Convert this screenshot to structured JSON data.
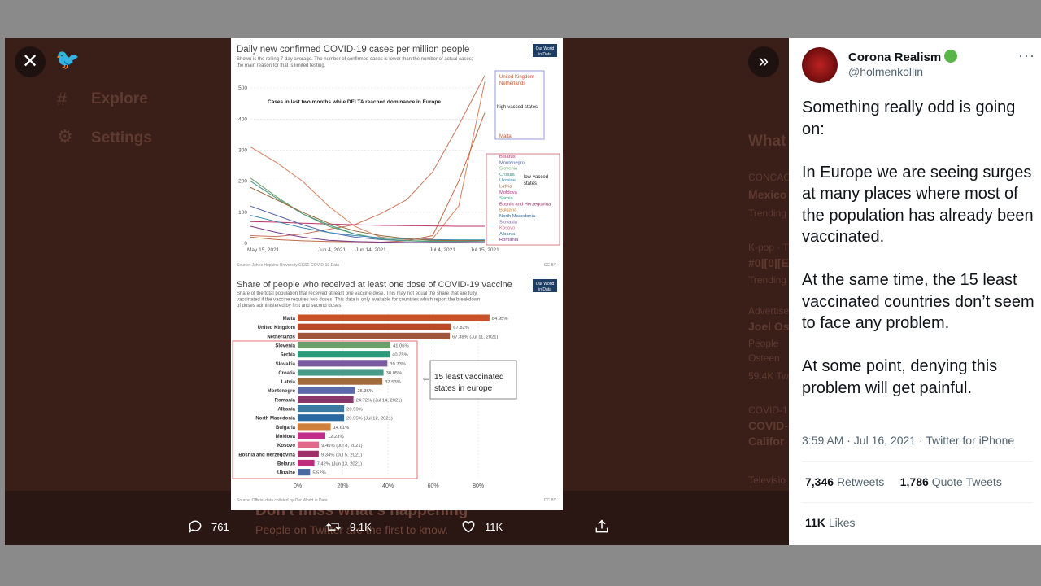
{
  "nav": {
    "explore": "Explore",
    "settings": "Settings"
  },
  "background": {
    "whats": "What",
    "trend_loc_1": "CONCAC",
    "trend_title_1": "Mexico",
    "trending_1": "Trending",
    "trend_loc_2": "K-pop · T",
    "trend_title_2": "#0|[0|[E",
    "trending_2": "Trending",
    "trend_loc_3": "Advertised",
    "trend_title_3": "Joel Os",
    "trend_desc_3a": "People",
    "trend_desc_3b": "Osteen",
    "trend_count_3": "59.4K Tw",
    "trend_loc_4": "COVID-1",
    "trend_title_4a": "COVID-",
    "trend_title_4b": "Califor",
    "footer": "Televisio",
    "headline": "Don't miss what's happening",
    "subline": "People on Twitter are the first to know."
  },
  "post": {
    "author_name": "Corona Realism",
    "author_handle": "@holmenkollin",
    "text": [
      "Something really odd is going on:",
      "In Europe we are seeing surges at many places where most of the population has already been vaccinated.",
      "At the same time, the 15 least vaccinated countries don’t seem to face any problem.",
      "At some point, denying this problem will get painful."
    ],
    "timestamp": "3:59 AM · Jul 16, 2021 · Twitter for iPhone",
    "retweets_count": "7,346",
    "retweets_label": "Retweets",
    "quotes_count": "1,786",
    "quotes_label": "Quote Tweets",
    "likes_count": "11K",
    "likes_label": "Likes"
  },
  "actions": {
    "replies": "761",
    "retweets": "9.1K",
    "likes": "11K"
  },
  "chart_data": [
    {
      "type": "line",
      "title": "Daily new confirmed COVID-19 cases per million people",
      "subtitle": "Shown is the rolling 7-day average. The number of confirmed cases is lower than the number of actual cases; the main reason for that is limited testing.",
      "logo": "Our World in Data",
      "annotation": "Cases in last two months while DELTA reached dominance in Europe",
      "x_ticks": [
        "May 15, 2021",
        "Jun 4, 2021",
        "Jun 14, 2021",
        "Jul 4, 2021",
        "Jul 15, 2021"
      ],
      "y_ticks": [
        "0",
        "100",
        "200",
        "300",
        "400",
        "500"
      ],
      "ylim": [
        0,
        550
      ],
      "high_group_label": "high-vacced states",
      "high_group": [
        "United Kingdom",
        "Netherlands",
        "Malta"
      ],
      "low_group_label": "low-vacced states",
      "low_group": [
        "Belarus",
        "Montenegro",
        "Slovenia",
        "Croatia",
        "Ukraine",
        "Latvia",
        "Moldova",
        "Serbia",
        "Bosnia and Herzegovina",
        "Bulgaria",
        "North Macedonia",
        "Slovakia",
        "Kosovo",
        "Albania",
        "Romania"
      ],
      "source": "Source: Johns Hopkins University CSSE COVID-19 Data",
      "license": "CC BY",
      "series": [
        {
          "name": "United Kingdom",
          "color": "#c8745a",
          "values": [
            25,
            22,
            30,
            45,
            60,
            95,
            140,
            230,
            380,
            540
          ]
        },
        {
          "name": "Netherlands",
          "color": "#d9805f",
          "values": [
            310,
            260,
            200,
            120,
            55,
            20,
            12,
            15,
            120,
            520
          ]
        },
        {
          "name": "Malta",
          "color": "#c06a4a",
          "values": [
            20,
            12,
            8,
            6,
            5,
            4,
            8,
            25,
            200,
            420
          ]
        },
        {
          "name": "Belarus",
          "color": "#c0306a",
          "values": [
            70,
            68,
            65,
            62,
            60,
            58,
            57,
            56,
            55,
            55
          ]
        },
        {
          "name": "Montenegro",
          "color": "#5566aa",
          "values": [
            120,
            90,
            60,
            35,
            20,
            12,
            8,
            7,
            8,
            9
          ]
        },
        {
          "name": "Slovenia",
          "color": "#6aa06a",
          "values": [
            210,
            150,
            95,
            55,
            30,
            15,
            9,
            7,
            7,
            8
          ]
        },
        {
          "name": "Croatia",
          "color": "#4a9a88",
          "values": [
            200,
            145,
            95,
            60,
            30,
            14,
            8,
            6,
            6,
            7
          ]
        },
        {
          "name": "Ukraine",
          "color": "#3a8ab0",
          "values": [
            90,
            70,
            50,
            35,
            25,
            18,
            14,
            12,
            11,
            11
          ]
        },
        {
          "name": "Latvia",
          "color": "#9a6a3a",
          "values": [
            180,
            140,
            100,
            65,
            40,
            25,
            15,
            10,
            9,
            9
          ]
        },
        {
          "name": "Romania",
          "color": "#7a3a8a",
          "values": [
            55,
            35,
            20,
            10,
            6,
            4,
            3,
            3,
            3,
            3
          ]
        }
      ]
    },
    {
      "type": "bar",
      "title": "Share of people who received at least one dose of COVID-19 vaccine",
      "subtitle": "Share of the total population that received at least one vaccine dose. This may not equal the share that are fully vaccinated if the vaccine requires two doses. This data is only available for countries which report the breakdown of doses administered by first and second doses.",
      "logo": "Our World in Data",
      "callout": "15 least vaccinated states in europe",
      "x_ticks": [
        "0%",
        "20%",
        "40%",
        "60%",
        "80%"
      ],
      "xlim": [
        0,
        85
      ],
      "source": "Source: Official data collated by Our World in Data",
      "license": "CC BY",
      "categories": [
        "Malta",
        "United Kingdom",
        "Netherlands",
        "Slovenia",
        "Serbia",
        "Slovakia",
        "Croatia",
        "Latvia",
        "Montenegro",
        "Romania",
        "Albania",
        "North Macedonia",
        "Bulgaria",
        "Moldova",
        "Kosovo",
        "Bosnia and Herzegovina",
        "Belarus",
        "Ukraine"
      ],
      "values": [
        84.95,
        67.82,
        67.38,
        41.06,
        40.75,
        39.73,
        38.05,
        37.53,
        25.36,
        24.72,
        20.59,
        20.55,
        14.61,
        12.23,
        9.45,
        9.34,
        7.42,
        5.52
      ],
      "labels": [
        "84.95%",
        "67.82%",
        "67.38% (Jul 11, 2021)",
        "41.06%",
        "40.75%",
        "39.73%",
        "38.05%",
        "37.53%",
        "25.36%",
        "24.72% (Jul 14, 2021)",
        "20.59%",
        "20.55% (Jul 12, 2021)",
        "14.61%",
        "12.23%",
        "9.45% (Jul 8, 2021)",
        "9.34% (Jul 5, 2021)",
        "7.42% (Jun 13, 2021)",
        "5.52%"
      ],
      "colors": [
        "#c8532a",
        "#b84a2a",
        "#a0563a",
        "#6aa06a",
        "#2a9a7a",
        "#7a5aa0",
        "#4a9a88",
        "#a06a3a",
        "#5a6aaa",
        "#8a3a6a",
        "#3a7aa0",
        "#2a6aa0",
        "#d0803a",
        "#c0308a",
        "#e06a8a",
        "#a0306a",
        "#c02a7a",
        "#4a6aa0"
      ]
    }
  ]
}
